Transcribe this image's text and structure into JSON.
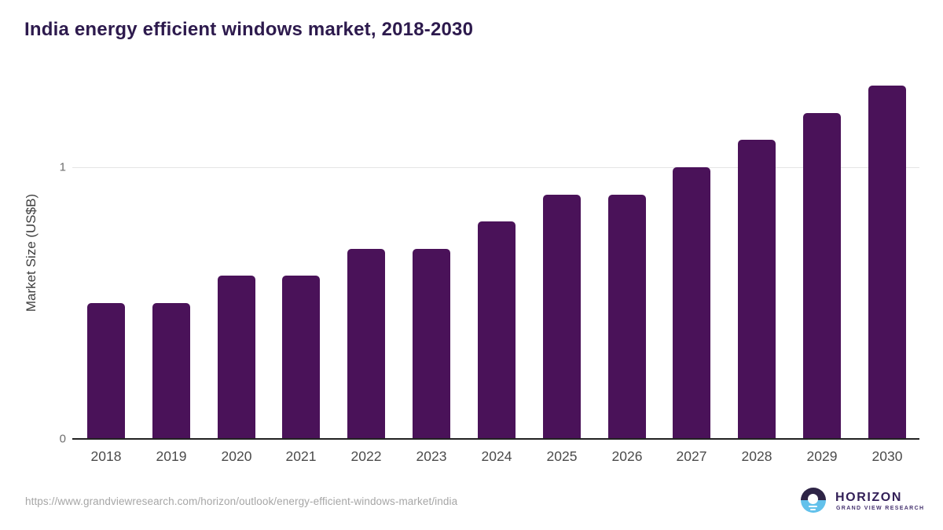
{
  "title": "India energy efficient windows market, 2018-2030",
  "source_url": "https://www.grandviewresearch.com/horizon/outlook/energy-efficient-windows-market/india",
  "logo": {
    "name": "HORIZON",
    "subtitle": "GRAND VIEW RESEARCH"
  },
  "colors": {
    "bar": "#4a1259",
    "title": "#2d1a4d",
    "axis": "#222222",
    "grid": "#e4e4e4",
    "y_tick": "#6e6e6e",
    "x_tick": "#4b4b4b",
    "y_label": "#3f3f3f",
    "url": "#a6a6a6",
    "logo_dark": "#2e2446",
    "logo_blue": "#62c1eb",
    "logo_text": "#332058",
    "logo_subtext": "#473470"
  },
  "chart_data": {
    "type": "bar",
    "title": "India energy efficient windows market, 2018-2030",
    "categories": [
      "2018",
      "2019",
      "2020",
      "2021",
      "2022",
      "2023",
      "2024",
      "2025",
      "2026",
      "2027",
      "2028",
      "2029",
      "2030"
    ],
    "values": [
      0.5,
      0.5,
      0.6,
      0.6,
      0.7,
      0.7,
      0.8,
      0.9,
      0.9,
      1.0,
      1.1,
      1.2,
      1.3
    ],
    "xlabel": "",
    "ylabel": "Market Size (US$B)",
    "ylim": [
      0,
      1.35
    ],
    "yticks": [
      0,
      1
    ],
    "grid": "horizontal, only at y=1",
    "legend": "none"
  }
}
